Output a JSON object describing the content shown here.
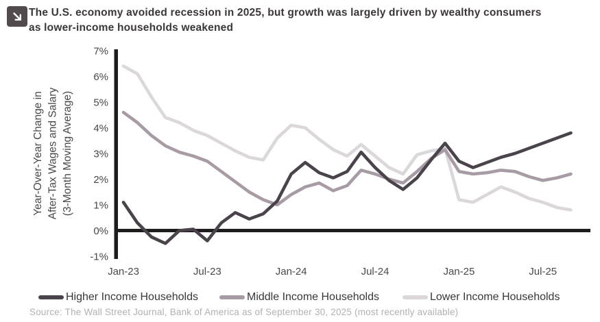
{
  "header": {
    "icon": "arrow-down-right-icon",
    "title_line1": "The U.S. economy avoided recession in 2025, but growth was largely driven by wealthy consumers",
    "title_line2": "as lower-income households weakened"
  },
  "source": "Source: The Wall Street Journal, Bank of America as of September 30, 2025 (most recently available)",
  "legend": {
    "position": "bottom",
    "items": [
      "Higher Income Households",
      "Middle Income Households",
      "Lower Income Households"
    ]
  },
  "chart_data": {
    "type": "line",
    "title": "The U.S. economy avoided recession in 2025, but growth was largely driven by wealthy consumers as lower-income households weakened",
    "xlabel": "",
    "ylabel": "Year-Over-Year Change in After-Tax Wages and Salary (3-Month Moving Average)",
    "ylabel_lines": [
      "Year-Over-Year Change in",
      "After-Tax Wages and Salary",
      "(3-Month Moving Average)"
    ],
    "ylim": [
      -1,
      7
    ],
    "grid": false,
    "axis_color": "#1d1d1d",
    "categories": [
      "Jan-23",
      "Feb-23",
      "Mar-23",
      "Apr-23",
      "May-23",
      "Jun-23",
      "Jul-23",
      "Aug-23",
      "Sep-23",
      "Oct-23",
      "Nov-23",
      "Dec-23",
      "Jan-24",
      "Feb-24",
      "Mar-24",
      "Apr-24",
      "May-24",
      "Jun-24",
      "Jul-24",
      "Aug-24",
      "Sep-24",
      "Oct-24",
      "Nov-24",
      "Dec-24",
      "Jan-25",
      "Feb-25",
      "Mar-25",
      "Apr-25",
      "May-25",
      "Jun-25",
      "Jul-25",
      "Aug-25",
      "Sep-25"
    ],
    "xticks": [
      {
        "index": 0,
        "label": "Jan-23"
      },
      {
        "index": 6,
        "label": "Jul-23"
      },
      {
        "index": 12,
        "label": "Jan-24"
      },
      {
        "index": 18,
        "label": "Jul-24"
      },
      {
        "index": 24,
        "label": "Jan-25"
      },
      {
        "index": 30,
        "label": "Jul-25"
      }
    ],
    "yticks": [
      {
        "value": 7,
        "label": "7%"
      },
      {
        "value": 6,
        "label": "6%"
      },
      {
        "value": 5,
        "label": "5%"
      },
      {
        "value": 4,
        "label": "4%"
      },
      {
        "value": 3,
        "label": "3%"
      },
      {
        "value": 2,
        "label": "2%"
      },
      {
        "value": 1,
        "label": "1%"
      },
      {
        "value": 0,
        "label": "0%"
      },
      {
        "value": -1,
        "label": "-1%"
      }
    ],
    "series": [
      {
        "key": "higher",
        "name": "Higher Income Households",
        "color": "#4b434c",
        "values": [
          1.1,
          0.3,
          -0.25,
          -0.5,
          0.0,
          0.05,
          -0.4,
          0.3,
          0.7,
          0.45,
          0.65,
          1.15,
          2.2,
          2.65,
          2.25,
          2.05,
          2.3,
          3.05,
          2.45,
          1.95,
          1.6,
          2.05,
          2.75,
          3.4,
          2.7,
          2.45,
          2.65,
          2.85,
          3.0,
          3.2,
          3.4,
          3.6,
          3.8
        ]
      },
      {
        "key": "middle",
        "name": "Middle Income Households",
        "color": "#a79ba5",
        "values": [
          4.6,
          4.2,
          3.7,
          3.3,
          3.05,
          2.9,
          2.7,
          2.3,
          1.9,
          1.5,
          1.2,
          1.0,
          1.4,
          1.7,
          1.85,
          1.55,
          1.75,
          2.35,
          2.2,
          2.0,
          1.85,
          2.3,
          2.8,
          3.15,
          2.3,
          2.2,
          2.25,
          2.35,
          2.3,
          2.1,
          1.95,
          2.05,
          2.2
        ]
      },
      {
        "key": "lower",
        "name": "Lower Income Households",
        "color": "#dbd7da",
        "values": [
          6.4,
          6.1,
          5.2,
          4.4,
          4.2,
          3.9,
          3.7,
          3.4,
          3.1,
          2.85,
          2.75,
          3.6,
          4.1,
          4.0,
          3.55,
          3.15,
          2.9,
          3.35,
          2.9,
          2.45,
          2.2,
          2.95,
          3.1,
          3.2,
          1.2,
          1.1,
          1.4,
          1.7,
          1.5,
          1.25,
          1.1,
          0.9,
          0.8
        ]
      }
    ]
  }
}
